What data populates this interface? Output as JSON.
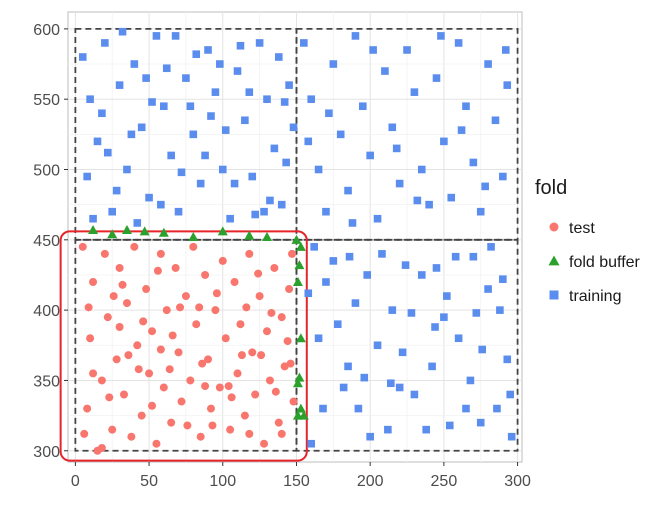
{
  "chart_data": {
    "type": "scatter",
    "xlim": [
      -5,
      303
    ],
    "ylim": [
      292,
      612
    ],
    "x_ticks": [
      0,
      50,
      100,
      150,
      200,
      250,
      300
    ],
    "y_ticks": [
      300,
      350,
      400,
      450,
      500,
      550,
      600
    ],
    "x_tick_labels": [
      "0",
      "50",
      "100",
      "150",
      "200",
      "250",
      "300"
    ],
    "y_tick_labels": [
      "300",
      "350",
      "400",
      "450",
      "500",
      "550",
      "600"
    ],
    "grid": true,
    "legend": {
      "title": "fold",
      "position": "right",
      "entries": [
        {
          "label": "test",
          "shape": "circle",
          "color": "#F8766D"
        },
        {
          "label": "fold buffer",
          "shape": "triangle",
          "color": "#2CA02C"
        },
        {
          "label": "training",
          "shape": "square",
          "color": "#5B8DEF"
        }
      ]
    },
    "regions": [
      {
        "name": "fold-1",
        "x": [
          0,
          150
        ],
        "y": [
          300,
          450
        ],
        "style": "dashed",
        "color": "#444444"
      },
      {
        "name": "fold-2",
        "x": [
          150,
          300
        ],
        "y": [
          300,
          450
        ],
        "style": "dashed",
        "color": "#444444"
      },
      {
        "name": "fold-3",
        "x": [
          0,
          150
        ],
        "y": [
          450,
          600
        ],
        "style": "dashed",
        "color": "#444444"
      },
      {
        "name": "fold-4",
        "x": [
          150,
          300
        ],
        "y": [
          450,
          600
        ],
        "style": "dashed",
        "color": "#444444"
      },
      {
        "name": "test-highlight",
        "x": [
          -10,
          157
        ],
        "y": [
          293,
          456
        ],
        "style": "solid-rounded",
        "color": "#E8242B"
      }
    ],
    "series": [
      {
        "name": "test",
        "shape": "circle",
        "color": "#F8766D",
        "points": [
          [
            5,
            445
          ],
          [
            8,
            330
          ],
          [
            10,
            380
          ],
          [
            12,
            420
          ],
          [
            15,
            300
          ],
          [
            18,
            350
          ],
          [
            20,
            440
          ],
          [
            22,
            395
          ],
          [
            25,
            315
          ],
          [
            28,
            365
          ],
          [
            30,
            430
          ],
          [
            33,
            340
          ],
          [
            35,
            405
          ],
          [
            38,
            310
          ],
          [
            40,
            445
          ],
          [
            42,
            375
          ],
          [
            45,
            325
          ],
          [
            48,
            415
          ],
          [
            50,
            355
          ],
          [
            52,
            385
          ],
          [
            55,
            305
          ],
          [
            58,
            440
          ],
          [
            60,
            345
          ],
          [
            62,
            400
          ],
          [
            65,
            320
          ],
          [
            68,
            430
          ],
          [
            70,
            370
          ],
          [
            72,
            335
          ],
          [
            75,
            410
          ],
          [
            78,
            350
          ],
          [
            80,
            445
          ],
          [
            82,
            390
          ],
          [
            85,
            310
          ],
          [
            88,
            425
          ],
          [
            90,
            365
          ],
          [
            92,
            330
          ],
          [
            95,
            400
          ],
          [
            98,
            345
          ],
          [
            100,
            435
          ],
          [
            102,
            380
          ],
          [
            105,
            315
          ],
          [
            108,
            420
          ],
          [
            110,
            355
          ],
          [
            112,
            390
          ],
          [
            115,
            325
          ],
          [
            118,
            440
          ],
          [
            120,
            370
          ],
          [
            122,
            340
          ],
          [
            125,
            410
          ],
          [
            128,
            305
          ],
          [
            130,
            385
          ],
          [
            132,
            350
          ],
          [
            135,
            430
          ],
          [
            138,
            320
          ],
          [
            140,
            395
          ],
          [
            142,
            360
          ],
          [
            145,
            415
          ],
          [
            148,
            335
          ],
          [
            147,
            440
          ],
          [
            12,
            355
          ],
          [
            26,
            410
          ],
          [
            36,
            368
          ],
          [
            46,
            392
          ],
          [
            56,
            428
          ],
          [
            66,
            382
          ],
          [
            76,
            318
          ],
          [
            86,
            362
          ],
          [
            96,
            412
          ],
          [
            106,
            338
          ],
          [
            116,
            402
          ],
          [
            126,
            368
          ],
          [
            136,
            342
          ],
          [
            144,
            378
          ],
          [
            18,
            302
          ],
          [
            32,
            418
          ],
          [
            52,
            332
          ],
          [
            64,
            358
          ],
          [
            84,
            402
          ],
          [
            104,
            346
          ],
          [
            124,
            426
          ],
          [
            140,
            312
          ],
          [
            9,
            402
          ],
          [
            23,
            338
          ],
          [
            43,
            358
          ],
          [
            71,
            402
          ],
          [
            93,
            318
          ],
          [
            113,
            368
          ],
          [
            133,
            398
          ],
          [
            6,
            312
          ],
          [
            30,
            388
          ],
          [
            58,
            372
          ],
          [
            88,
            346
          ],
          [
            118,
            312
          ],
          [
            146,
            362
          ]
        ]
      },
      {
        "name": "fold buffer",
        "shape": "triangle",
        "color": "#2CA02C",
        "points": [
          [
            12,
            457
          ],
          [
            25,
            454
          ],
          [
            35,
            457
          ],
          [
            47,
            456
          ],
          [
            60,
            455
          ],
          [
            80,
            452
          ],
          [
            100,
            456
          ],
          [
            118,
            453
          ],
          [
            130,
            452
          ],
          [
            150,
            450
          ],
          [
            152,
            432
          ],
          [
            151,
            420
          ],
          [
            153,
            380
          ],
          [
            152,
            352
          ],
          [
            151,
            348
          ],
          [
            153,
            330
          ],
          [
            151,
            325
          ],
          [
            155,
            325
          ],
          [
            153,
            445
          ]
        ]
      },
      {
        "name": "training",
        "shape": "square",
        "color": "#5B8DEF",
        "points": [
          [
            5,
            580
          ],
          [
            10,
            550
          ],
          [
            15,
            520
          ],
          [
            20,
            590
          ],
          [
            25,
            470
          ],
          [
            30,
            560
          ],
          [
            35,
            500
          ],
          [
            40,
            575
          ],
          [
            45,
            530
          ],
          [
            50,
            480
          ],
          [
            55,
            595
          ],
          [
            60,
            545
          ],
          [
            65,
            510
          ],
          [
            70,
            470
          ],
          [
            75,
            565
          ],
          [
            80,
            525
          ],
          [
            85,
            490
          ],
          [
            90,
            585
          ],
          [
            95,
            555
          ],
          [
            100,
            500
          ],
          [
            105,
            465
          ],
          [
            110,
            570
          ],
          [
            115,
            535
          ],
          [
            120,
            495
          ],
          [
            125,
            590
          ],
          [
            130,
            550
          ],
          [
            135,
            515
          ],
          [
            140,
            475
          ],
          [
            145,
            560
          ],
          [
            148,
            530
          ],
          [
            8,
            495
          ],
          [
            18,
            540
          ],
          [
            28,
            485
          ],
          [
            38,
            525
          ],
          [
            48,
            565
          ],
          [
            58,
            475
          ],
          [
            68,
            595
          ],
          [
            78,
            545
          ],
          [
            88,
            510
          ],
          [
            98,
            575
          ],
          [
            108,
            490
          ],
          [
            118,
            555
          ],
          [
            128,
            470
          ],
          [
            138,
            580
          ],
          [
            143,
            505
          ],
          [
            12,
            465
          ],
          [
            32,
            598
          ],
          [
            52,
            548
          ],
          [
            72,
            498
          ],
          [
            92,
            538
          ],
          [
            112,
            588
          ],
          [
            132,
            478
          ],
          [
            22,
            512
          ],
          [
            42,
            462
          ],
          [
            62,
            572
          ],
          [
            82,
            582
          ],
          [
            102,
            528
          ],
          [
            122,
            468
          ],
          [
            142,
            548
          ],
          [
            155,
            590
          ],
          [
            160,
            550
          ],
          [
            165,
            500
          ],
          [
            170,
            470
          ],
          [
            175,
            575
          ],
          [
            180,
            525
          ],
          [
            185,
            485
          ],
          [
            190,
            595
          ],
          [
            195,
            545
          ],
          [
            200,
            510
          ],
          [
            205,
            465
          ],
          [
            210,
            570
          ],
          [
            215,
            530
          ],
          [
            220,
            490
          ],
          [
            225,
            585
          ],
          [
            230,
            555
          ],
          [
            235,
            500
          ],
          [
            240,
            475
          ],
          [
            245,
            565
          ],
          [
            250,
            520
          ],
          [
            255,
            480
          ],
          [
            260,
            590
          ],
          [
            265,
            545
          ],
          [
            270,
            505
          ],
          [
            275,
            470
          ],
          [
            280,
            575
          ],
          [
            285,
            535
          ],
          [
            290,
            495
          ],
          [
            293,
            560
          ],
          [
            158,
            520
          ],
          [
            172,
            540
          ],
          [
            188,
            462
          ],
          [
            202,
            585
          ],
          [
            218,
            515
          ],
          [
            232,
            478
          ],
          [
            248,
            595
          ],
          [
            262,
            528
          ],
          [
            278,
            488
          ],
          [
            292,
            585
          ],
          [
            162,
            445
          ],
          [
            170,
            420
          ],
          [
            178,
            390
          ],
          [
            185,
            360
          ],
          [
            192,
            330
          ],
          [
            200,
            310
          ],
          [
            208,
            440
          ],
          [
            215,
            400
          ],
          [
            222,
            370
          ],
          [
            230,
            340
          ],
          [
            238,
            315
          ],
          [
            245,
            430
          ],
          [
            252,
            410
          ],
          [
            260,
            380
          ],
          [
            268,
            350
          ],
          [
            275,
            320
          ],
          [
            282,
            445
          ],
          [
            288,
            400
          ],
          [
            293,
            365
          ],
          [
            160,
            305
          ],
          [
            175,
            435
          ],
          [
            190,
            405
          ],
          [
            205,
            375
          ],
          [
            220,
            345
          ],
          [
            235,
            425
          ],
          [
            250,
            395
          ],
          [
            265,
            330
          ],
          [
            280,
            415
          ],
          [
            295,
            340
          ],
          [
            165,
            380
          ],
          [
            182,
            345
          ],
          [
            198,
            425
          ],
          [
            212,
            315
          ],
          [
            228,
            398
          ],
          [
            242,
            360
          ],
          [
            258,
            438
          ],
          [
            272,
            398
          ],
          [
            286,
            330
          ],
          [
            168,
            330
          ],
          [
            196,
            352
          ],
          [
            224,
            432
          ],
          [
            254,
            318
          ],
          [
            276,
            372
          ],
          [
            290,
            422
          ],
          [
            158,
            412
          ],
          [
            186,
            438
          ],
          [
            214,
            348
          ],
          [
            244,
            388
          ],
          [
            270,
            438
          ],
          [
            296,
            310
          ]
        ]
      }
    ]
  }
}
